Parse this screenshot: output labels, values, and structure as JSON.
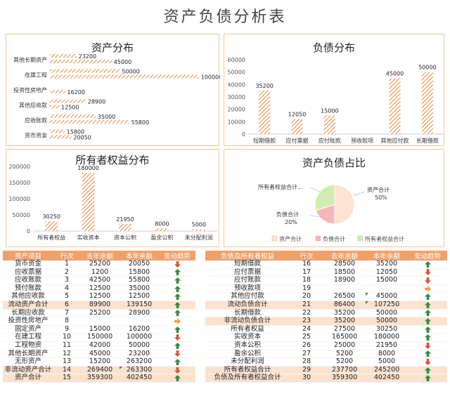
{
  "page_title": "资产负债分析表",
  "colors": {
    "accent": "#f0a06a",
    "bar": "#e8914f",
    "highlight": "#fbe2cf",
    "up": "#2e8b3e",
    "down": "#d9532f",
    "flat": "#f0a030"
  },
  "chart_data": [
    {
      "type": "bar",
      "orientation": "horizontal",
      "title": "资产分布",
      "categories": [
        "其他长期资产",
        "在建工程",
        "投资性房地产",
        "其他应收款",
        "应收账款",
        "货币资金"
      ],
      "series": [
        {
          "name": "",
          "values": [
            23200,
            50000,
            null,
            28900,
            35000,
            15800
          ]
        },
        {
          "name": "",
          "values": [
            45000,
            100000,
            16200,
            12500,
            55800,
            20050
          ]
        }
      ],
      "labels": [
        [
          "23200",
          "45000"
        ],
        [
          "50000",
          "100000"
        ],
        [
          "",
          "16200"
        ],
        [
          "28900",
          "12500"
        ],
        [
          "35000",
          "55800"
        ],
        [
          "15800",
          "20050"
        ]
      ]
    },
    {
      "type": "bar",
      "title": "负债分布",
      "categories": [
        "短期借款",
        "应付票据",
        "应付账款",
        "预收款项",
        "其他应付款",
        "长期借款"
      ],
      "values": [
        35200,
        12050,
        15000,
        null,
        45000,
        50000
      ],
      "labels": [
        "35200",
        "12050",
        "15000",
        "",
        "45000",
        "50000"
      ],
      "yticks": [
        "0",
        "10000",
        "20000",
        "30000",
        "40000",
        "50000",
        "60000"
      ],
      "ylim": [
        0,
        60000
      ]
    },
    {
      "type": "bar",
      "title": "所有者权益分布",
      "categories": [
        "所有者权益",
        "实收资本",
        "资本公积",
        "盈余公积",
        "未分配利润"
      ],
      "values": [
        30250,
        180000,
        21950,
        8000,
        5000
      ],
      "labels": [
        "30250",
        "180000",
        "21950",
        "8000",
        "5000"
      ],
      "yticks": [
        "0",
        "50000",
        "100000",
        "150000",
        "200000"
      ],
      "ylim": [
        0,
        200000
      ]
    },
    {
      "type": "pie",
      "title": "资产负债占比",
      "slices": [
        {
          "name": "资产合计",
          "value": 50,
          "label_name": "资产合计",
          "label_pct": "50%",
          "color": "#fde3d0"
        },
        {
          "name": "负债合计",
          "value": 20,
          "label_name": "负债合计",
          "label_pct": "20%",
          "color": "#f6b7b7"
        },
        {
          "name": "所有者权益合计",
          "value": 30,
          "label_name": "所有者权益合计...",
          "label_pct": "",
          "color": "#d3ecb3"
        }
      ],
      "legend": [
        "资产合计",
        "负债合计",
        "所有者权益合计"
      ]
    }
  ],
  "left_table": {
    "headers": [
      "资产项目",
      "行次",
      "去年余额",
      "本年余额",
      "变动趋势"
    ],
    "rows": [
      {
        "name": "货币资金",
        "line": "1",
        "prev": "25200",
        "curr": "20050",
        "trend": "down",
        "hl": false,
        "mark": false
      },
      {
        "name": "应收票据",
        "line": "2",
        "prev": "1200",
        "curr": "15800",
        "trend": "up",
        "hl": false,
        "mark": false
      },
      {
        "name": "应收账款",
        "line": "3",
        "prev": "42500",
        "curr": "55800",
        "trend": "up",
        "hl": false,
        "mark": false
      },
      {
        "name": "预付账款",
        "line": "4",
        "prev": "12500",
        "curr": "35000",
        "trend": "up",
        "hl": false,
        "mark": false
      },
      {
        "name": "其他应收款",
        "line": "5",
        "prev": "12500",
        "curr": "12500",
        "trend": "up",
        "hl": false,
        "mark": false
      },
      {
        "name": "流动资产合计",
        "line": "6",
        "prev": "89900",
        "curr": "139150",
        "trend": "up",
        "hl": true,
        "mark": false
      },
      {
        "name": "长期应收款",
        "line": "7",
        "prev": "25200",
        "curr": "28900",
        "trend": "up",
        "hl": false,
        "mark": false
      },
      {
        "name": "投资性房地产",
        "line": "8",
        "prev": "",
        "curr": "",
        "trend": "flat",
        "hl": false,
        "mark": false
      },
      {
        "name": "固定资产",
        "line": "9",
        "prev": "15000",
        "curr": "16200",
        "trend": "up",
        "hl": false,
        "mark": false
      },
      {
        "name": "在建工程",
        "line": "10",
        "prev": "150000",
        "curr": "100000",
        "trend": "down",
        "hl": false,
        "mark": false
      },
      {
        "name": "工程物资",
        "line": "11",
        "prev": "42000",
        "curr": "50000",
        "trend": "up",
        "hl": false,
        "mark": false
      },
      {
        "name": "其他长期资产",
        "line": "12",
        "prev": "45000",
        "curr": "23200",
        "trend": "down",
        "hl": false,
        "mark": false
      },
      {
        "name": "无形资产",
        "line": "13",
        "prev": "15200",
        "curr": "263200",
        "trend": "up",
        "hl": false,
        "mark": false
      },
      {
        "name": "非流动资产合计",
        "line": "14",
        "prev": "269400",
        "curr": "263300",
        "trend": "down",
        "hl": true,
        "mark": true
      },
      {
        "name": "资产合计",
        "line": "15",
        "prev": "359300",
        "curr": "402450",
        "trend": "up",
        "hl": true,
        "mark": false
      }
    ]
  },
  "right_table": {
    "headers": [
      "负债及所有者权益",
      "行次",
      "去年余额",
      "本年余额",
      "变动趋势"
    ],
    "rows": [
      {
        "name": "短期借款",
        "line": "16",
        "prev": "28500",
        "curr": "35200",
        "trend": "up",
        "hl": false,
        "mark": false
      },
      {
        "name": "应付票据",
        "line": "17",
        "prev": "18500",
        "curr": "12050",
        "trend": "down",
        "hl": false,
        "mark": false
      },
      {
        "name": "应付账款",
        "line": "18",
        "prev": "18900",
        "curr": "15000",
        "trend": "down",
        "hl": false,
        "mark": false
      },
      {
        "name": "预收款项",
        "line": "19",
        "prev": "",
        "curr": "",
        "trend": "flat",
        "hl": false,
        "mark": false
      },
      {
        "name": "其他应付款",
        "line": "20",
        "prev": "26500",
        "curr": "45000",
        "trend": "up",
        "hl": false,
        "mark": true
      },
      {
        "name": "流动负债合计",
        "line": "21",
        "prev": "86400",
        "curr": "107250",
        "trend": "up",
        "hl": true,
        "mark": true
      },
      {
        "name": "长期借款",
        "line": "22",
        "prev": "35200",
        "curr": "50000",
        "trend": "up",
        "hl": false,
        "mark": false
      },
      {
        "name": "非流动负债合计",
        "line": "23",
        "prev": "35200",
        "curr": "50000",
        "trend": "up",
        "hl": true,
        "mark": false
      },
      {
        "name": "所有者权益",
        "line": "24",
        "prev": "27500",
        "curr": "30250",
        "trend": "up",
        "hl": false,
        "mark": false
      },
      {
        "name": "实收资本",
        "line": "25",
        "prev": "165000",
        "curr": "180000",
        "trend": "up",
        "hl": false,
        "mark": false
      },
      {
        "name": "资本公积",
        "line": "26",
        "prev": "25000",
        "curr": "21950",
        "trend": "down",
        "hl": false,
        "mark": false
      },
      {
        "name": "盈余公积",
        "line": "27",
        "prev": "5200",
        "curr": "8000",
        "trend": "up",
        "hl": false,
        "mark": false
      },
      {
        "name": "未分配利润",
        "line": "28",
        "prev": "5200",
        "curr": "5000",
        "trend": "down",
        "hl": false,
        "mark": false
      },
      {
        "name": "所有者权益合计",
        "line": "29",
        "prev": "237700",
        "curr": "245200",
        "trend": "up",
        "hl": true,
        "mark": false
      },
      {
        "name": "负债及所有者权益合计",
        "line": "30",
        "prev": "359300",
        "curr": "402450",
        "trend": "up",
        "hl": true,
        "mark": false
      }
    ]
  }
}
